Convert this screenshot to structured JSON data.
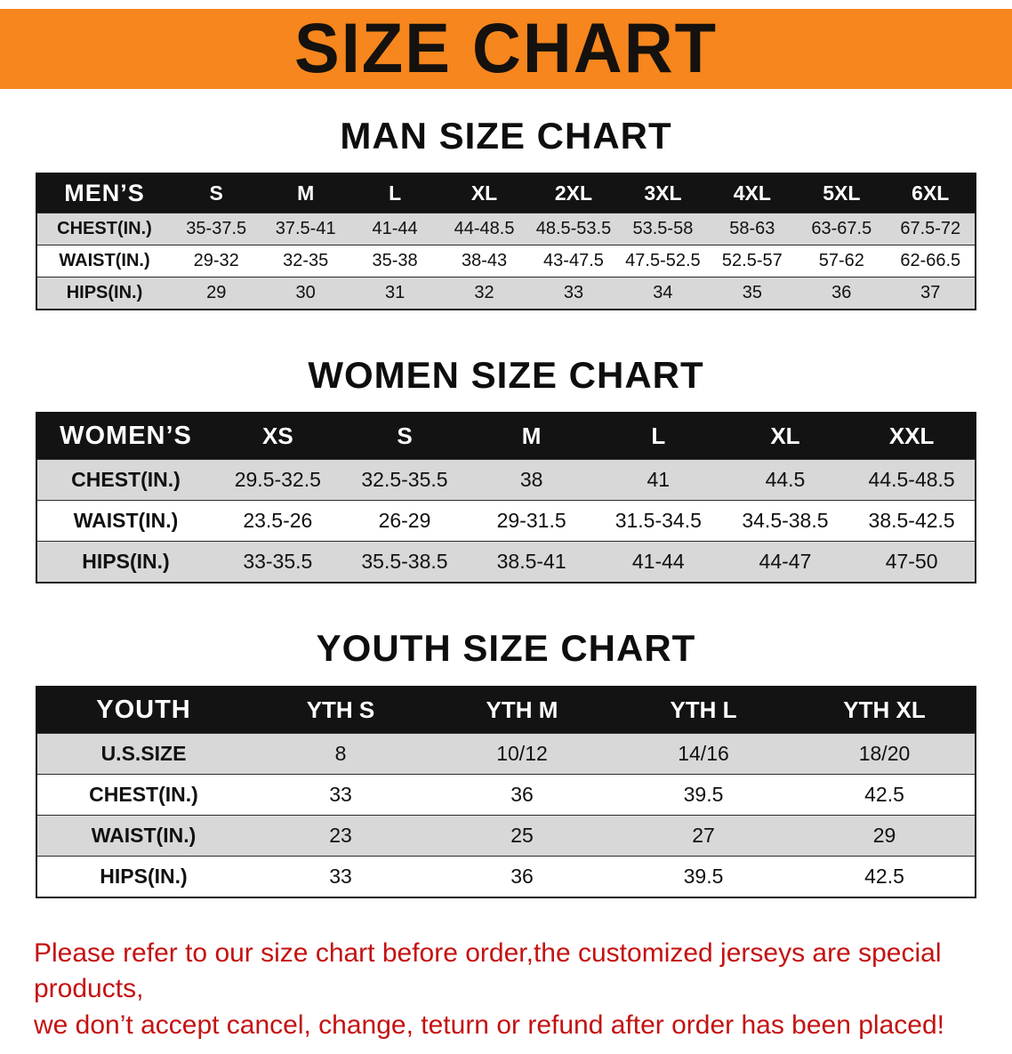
{
  "banner": {
    "title": "SIZE CHART",
    "bg_color": "#f6861d",
    "text_color": "#14110e"
  },
  "sections": {
    "men": {
      "heading": "MAN SIZE CHART"
    },
    "women": {
      "heading": "WOMEN SIZE CHART"
    },
    "youth": {
      "heading": "YOUTH SIZE CHART"
    }
  },
  "tables": {
    "men": {
      "label": "MEN’S",
      "columns": [
        "S",
        "M",
        "L",
        "XL",
        "2XL",
        "3XL",
        "4XL",
        "5XL",
        "6XL"
      ],
      "rows": [
        {
          "label": "CHEST(IN.)",
          "values": [
            "35-37.5",
            "37.5-41",
            "41-44",
            "44-48.5",
            "48.5-53.5",
            "53.5-58",
            "58-63",
            "63-67.5",
            "67.5-72"
          ]
        },
        {
          "label": "WAIST(IN.)",
          "values": [
            "29-32",
            "32-35",
            "35-38",
            "38-43",
            "43-47.5",
            "47.5-52.5",
            "52.5-57",
            "57-62",
            "62-66.5"
          ]
        },
        {
          "label": "HIPS(IN.)",
          "values": [
            "29",
            "30",
            "31",
            "32",
            "33",
            "34",
            "35",
            "36",
            "37"
          ]
        }
      ]
    },
    "women": {
      "label": "WOMEN’S",
      "columns": [
        "XS",
        "S",
        "M",
        "L",
        "XL",
        "XXL"
      ],
      "rows": [
        {
          "label": "CHEST(IN.)",
          "values": [
            "29.5-32.5",
            "32.5-35.5",
            "38",
            "41",
            "44.5",
            "44.5-48.5"
          ]
        },
        {
          "label": "WAIST(IN.)",
          "values": [
            "23.5-26",
            "26-29",
            "29-31.5",
            "31.5-34.5",
            "34.5-38.5",
            "38.5-42.5"
          ]
        },
        {
          "label": "HIPS(IN.)",
          "values": [
            "33-35.5",
            "35.5-38.5",
            "38.5-41",
            "41-44",
            "44-47",
            "47-50"
          ]
        }
      ]
    },
    "youth": {
      "label": "YOUTH",
      "columns": [
        "YTH S",
        "YTH M",
        "YTH L",
        "YTH XL"
      ],
      "rows": [
        {
          "label": "U.S.SIZE",
          "values": [
            "8",
            "10/12",
            "14/16",
            "18/20"
          ]
        },
        {
          "label": "CHEST(IN.)",
          "values": [
            "33",
            "36",
            "39.5",
            "42.5"
          ]
        },
        {
          "label": "WAIST(IN.)",
          "values": [
            "23",
            "25",
            "27",
            "29"
          ]
        },
        {
          "label": "HIPS(IN.)",
          "values": [
            "33",
            "36",
            "39.5",
            "42.5"
          ]
        }
      ]
    }
  },
  "disclaimer": {
    "line1": "Please refer to our size chart before order,the customized jerseys are special products,",
    "line2": "we don’t accept cancel, change, teturn or refund after order has been placed!",
    "color": "#c41212"
  }
}
